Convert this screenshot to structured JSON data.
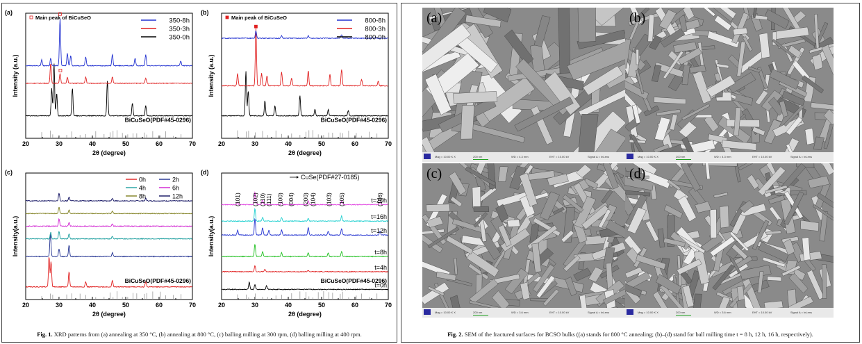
{
  "figure1": {
    "caption_label": "Fig. 1.",
    "caption_text": "XRD patterns from (a) annealing at 350 °C, (b) annealing at 800 °C, (c) balling milling at 300 rpm, (d) balling milling at 400 rpm."
  },
  "figure2": {
    "caption_label": "Fig. 2.",
    "caption_text": "SEM of the fractured surfaces for BCSO bulks ((a) stands for 800 °C annealing; (b)–(d) stand for ball milling time t = 8 h, 12 h, 16 h, respectively).",
    "panels": [
      {
        "label": "(a)",
        "info": [
          "Mag = 10.00 K X",
          "200 nm",
          "WD = 4.3 mm",
          "EHT = 10.00 kV",
          "Signal A = InLens"
        ]
      },
      {
        "label": "(b)",
        "info": [
          "Mag = 10.00 K X",
          "200 nm",
          "WD = 4.3 mm",
          "EHT = 10.00 kV",
          "Signal A = InLens"
        ]
      },
      {
        "label": "(c)",
        "info": [
          "Mag = 10.00 K X",
          "200 nm",
          "WD = 3.6 mm",
          "EHT = 10.00 kV",
          "Signal A = InLens"
        ]
      },
      {
        "label": "(d)",
        "info": [
          "Mag = 10.00 K X",
          "200 nm",
          "WD = 3.6 mm",
          "EHT = 10.00 kV",
          "Signal A = InLens"
        ]
      }
    ]
  },
  "chart_data": [
    {
      "type": "line",
      "panel": "(a)",
      "xlabel": "2θ (degree)",
      "ylabel": "Intensity (a.u.)",
      "xlim": [
        20,
        70
      ],
      "xticks": [
        20,
        30,
        40,
        50,
        60,
        70
      ],
      "annotation": "Main peak of BiCuSeO",
      "reference_label": "BiCuSeO(PDF#45-0296)",
      "series": [
        {
          "name": "350-0h",
          "color": "#000000",
          "offset": 0.18,
          "peaks": [
            [
              27.8,
              0.22
            ],
            [
              28.5,
              0.42
            ],
            [
              29.3,
              0.18
            ],
            [
              34.0,
              0.22
            ],
            [
              44.5,
              0.28
            ],
            [
              52.0,
              0.1
            ],
            [
              56.0,
              0.08
            ]
          ]
        },
        {
          "name": "350-3h",
          "color": "#e02020",
          "offset": 0.44,
          "peaks": [
            [
              27.5,
              0.16
            ],
            [
              30.3,
              0.08
            ],
            [
              32.5,
              0.05
            ],
            [
              38.0,
              0.05
            ],
            [
              46.0,
              0.05
            ],
            [
              56.0,
              0.04
            ]
          ]
        },
        {
          "name": "350-8h",
          "color": "#2030d0",
          "offset": 0.58,
          "peaks": [
            [
              24.8,
              0.05
            ],
            [
              27.5,
              0.06
            ],
            [
              30.3,
              0.38
            ],
            [
              32.5,
              0.1
            ],
            [
              33.5,
              0.08
            ],
            [
              38.0,
              0.07
            ],
            [
              46.0,
              0.09
            ],
            [
              52.8,
              0.06
            ],
            [
              56.0,
              0.09
            ],
            [
              66.5,
              0.04
            ]
          ]
        }
      ],
      "markers": [
        {
          "x": 30.3,
          "series": "350-8h"
        },
        {
          "x": 30.4,
          "series": "350-3h"
        }
      ]
    },
    {
      "type": "line",
      "panel": "(b)",
      "xlabel": "2θ (degree)",
      "ylabel": "Intensity (a.u.)",
      "xlim": [
        20,
        70
      ],
      "xticks": [
        20,
        30,
        40,
        50,
        60,
        70
      ],
      "annotation": "Main peak of BiCuSeO",
      "reference_label": "BiCuSeO(PDF#45-0296)",
      "series": [
        {
          "name": "800-0h",
          "color": "#000000",
          "offset": 0.18,
          "peaks": [
            [
              27.3,
              0.36
            ],
            [
              28.0,
              0.2
            ],
            [
              33.0,
              0.12
            ],
            [
              36.0,
              0.08
            ],
            [
              43.5,
              0.16
            ],
            [
              48.0,
              0.05
            ],
            [
              52.0,
              0.05
            ],
            [
              58.0,
              0.04
            ]
          ]
        },
        {
          "name": "800-3h",
          "color": "#e02020",
          "offset": 0.42,
          "peaks": [
            [
              24.8,
              0.1
            ],
            [
              30.3,
              0.46
            ],
            [
              32.0,
              0.1
            ],
            [
              33.6,
              0.08
            ],
            [
              38.0,
              0.11
            ],
            [
              41.0,
              0.06
            ],
            [
              46.0,
              0.12
            ],
            [
              52.5,
              0.09
            ],
            [
              56.0,
              0.13
            ],
            [
              62.0,
              0.05
            ],
            [
              67.0,
              0.04
            ]
          ]
        },
        {
          "name": "800-8h",
          "color": "#2030d0",
          "offset": 0.8,
          "peaks": [
            [
              30.3,
              0.06
            ],
            [
              38.0,
              0.02
            ],
            [
              46.0,
              0.02
            ],
            [
              56.0,
              0.03
            ]
          ]
        }
      ],
      "markers": [
        {
          "x": 30.3,
          "series": "800-8h"
        }
      ]
    },
    {
      "type": "line",
      "panel": "(c)",
      "xlabel": "2θ (degree)",
      "ylabel": "Intensity(a.u.)",
      "xlim": [
        20,
        70
      ],
      "xticks": [
        20,
        30,
        40,
        50,
        60,
        70
      ],
      "reference_label": "BiCuSeO(PDF#45-0296)",
      "series": [
        {
          "name": "0h",
          "color": "#e02020",
          "offset": 0.1,
          "peaks": [
            [
              27.0,
              0.24
            ],
            [
              27.6,
              0.2
            ],
            [
              33.0,
              0.12
            ],
            [
              38.0,
              0.04
            ],
            [
              46.0,
              0.05
            ],
            [
              56.0,
              0.04
            ]
          ]
        },
        {
          "name": "2h",
          "color": "#203090",
          "offset": 0.34,
          "peaks": [
            [
              27.4,
              0.18
            ],
            [
              30.0,
              0.06
            ],
            [
              33.0,
              0.09
            ],
            [
              46.0,
              0.03
            ]
          ]
        },
        {
          "name": "4h",
          "color": "#20a0a0",
          "offset": 0.48,
          "peaks": [
            [
              27.5,
              0.05
            ],
            [
              30.0,
              0.06
            ],
            [
              33.0,
              0.04
            ],
            [
              46.0,
              0.02
            ]
          ]
        },
        {
          "name": "6h",
          "color": "#d020d0",
          "offset": 0.58,
          "peaks": [
            [
              30.0,
              0.06
            ],
            [
              33.0,
              0.03
            ],
            [
              46.0,
              0.02
            ]
          ]
        },
        {
          "name": "8h",
          "color": "#808020",
          "offset": 0.68,
          "peaks": [
            [
              30.0,
              0.05
            ],
            [
              33.0,
              0.03
            ],
            [
              46.0,
              0.02
            ]
          ]
        },
        {
          "name": "12h",
          "color": "#101060",
          "offset": 0.78,
          "peaks": [
            [
              30.0,
              0.06
            ],
            [
              33.0,
              0.03
            ],
            [
              46.0,
              0.02
            ],
            [
              56.0,
              0.02
            ]
          ]
        }
      ]
    },
    {
      "type": "line",
      "panel": "(d)",
      "xlabel": "2θ (degree)",
      "ylabel": "Intensity(a.u.)",
      "xlim": [
        20,
        70
      ],
      "xticks": [
        20,
        30,
        40,
        50,
        60,
        70
      ],
      "annotation": "CuSe(PDF#27-0185)",
      "reference_label": "BiCuSeO(PDF#45-0296)",
      "hkl_labels": [
        {
          "text": "(101)",
          "x": 24.8
        },
        {
          "text": "(102)",
          "x": 30.1
        },
        {
          "text": "(110)",
          "x": 32.3
        },
        {
          "text": "(111)",
          "x": 34.2
        },
        {
          "text": "(100)",
          "x": 37.6
        },
        {
          "text": "(004)",
          "x": 40.8
        },
        {
          "text": "(200)",
          "x": 45.2
        },
        {
          "text": "(104)",
          "x": 47.4
        },
        {
          "text": "(103)",
          "x": 52.2
        },
        {
          "text": "(105)",
          "x": 56.0
        },
        {
          "text": "(106)",
          "x": 67.5
        }
      ],
      "series": [
        {
          "name": "t=0h",
          "color": "#000000",
          "offset": 0.08,
          "label": "t=0h",
          "peaks": [
            [
              28.3,
              0.06
            ],
            [
              30.0,
              0.04
            ],
            [
              33.5,
              0.03
            ]
          ]
        },
        {
          "name": "t=4h",
          "color": "#e02020",
          "offset": 0.22,
          "label": "t=4h",
          "peaks": [
            [
              30.0,
              0.05
            ],
            [
              33.0,
              0.02
            ],
            [
              46.0,
              0.01
            ]
          ]
        },
        {
          "name": "t=8h",
          "color": "#20c020",
          "offset": 0.34,
          "label": "t=8h",
          "peaks": [
            [
              30.0,
              0.1
            ],
            [
              32.3,
              0.04
            ],
            [
              38.0,
              0.03
            ],
            [
              46.0,
              0.03
            ],
            [
              52.0,
              0.03
            ],
            [
              56.0,
              0.04
            ]
          ]
        },
        {
          "name": "t=12h",
          "color": "#2030d0",
          "offset": 0.51,
          "label": "t=12h",
          "peaks": [
            [
              24.8,
              0.04
            ],
            [
              30.0,
              0.13
            ],
            [
              32.3,
              0.06
            ],
            [
              34.2,
              0.04
            ],
            [
              38.0,
              0.04
            ],
            [
              46.0,
              0.06
            ],
            [
              52.0,
              0.03
            ],
            [
              56.0,
              0.05
            ],
            [
              67.5,
              0.03
            ]
          ]
        },
        {
          "name": "t=16h",
          "color": "#20d0d0",
          "offset": 0.62,
          "label": "t=16h",
          "peaks": [
            [
              30.0,
              0.1
            ],
            [
              32.3,
              0.03
            ],
            [
              38.0,
              0.03
            ],
            [
              46.0,
              0.02
            ],
            [
              56.0,
              0.04
            ]
          ]
        },
        {
          "name": "t=20h",
          "color": "#e040e0",
          "offset": 0.75,
          "label": "t=20h",
          "peaks": [
            [
              24.8,
              0.02
            ],
            [
              30.0,
              0.1
            ],
            [
              32.3,
              0.04
            ],
            [
              38.0,
              0.02
            ],
            [
              46.0,
              0.03
            ],
            [
              56.0,
              0.03
            ],
            [
              67.5,
              0.02
            ]
          ]
        }
      ]
    }
  ]
}
